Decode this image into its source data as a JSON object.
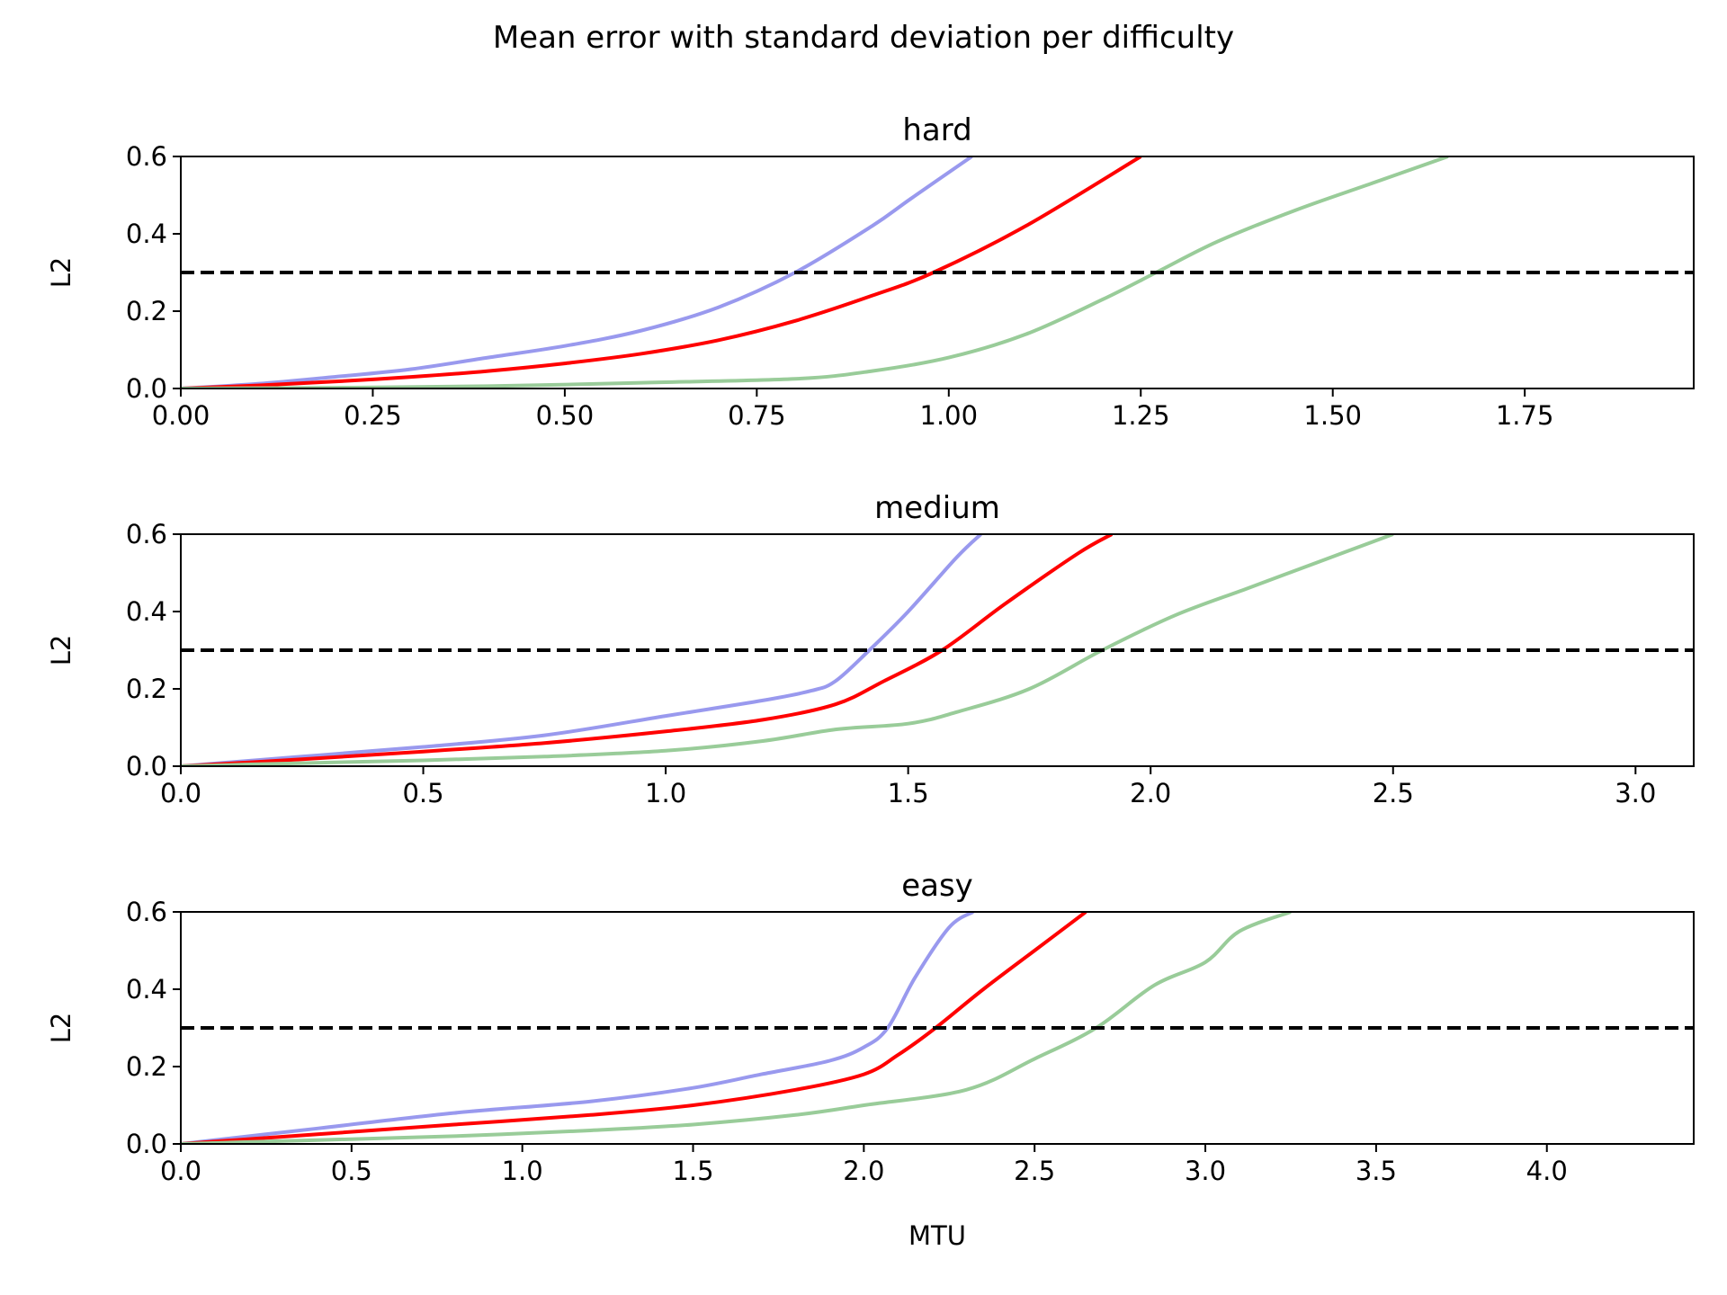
{
  "chart_data": {
    "type": "line",
    "suptitle": "Mean error with standard deviation per difficulty",
    "xlabel": "MTU",
    "threshold": 0.3,
    "series_colors": [
      "#9999ee",
      "#ff0000",
      "#99cc99"
    ],
    "panels": [
      {
        "title": "hard",
        "ylabel": "L2",
        "xlim": [
          0,
          1.97
        ],
        "ylim": [
          0,
          0.6
        ],
        "xticks": [
          "0.00",
          "0.25",
          "0.50",
          "0.75",
          "1.00",
          "1.25",
          "1.50",
          "1.75"
        ],
        "xtick_values": [
          0,
          0.25,
          0.5,
          0.75,
          1.0,
          1.25,
          1.5,
          1.75
        ],
        "yticks": [
          "0.0",
          "0.2",
          "0.4",
          "0.6"
        ],
        "ytick_values": [
          0,
          0.2,
          0.4,
          0.6
        ],
        "series": [
          {
            "color": "#9999ee",
            "x": [
              0,
              0.1,
              0.2,
              0.3,
              0.4,
              0.5,
              0.6,
              0.7,
              0.8,
              0.9,
              0.95,
              1.03
            ],
            "y": [
              0,
              0.012,
              0.03,
              0.05,
              0.08,
              0.11,
              0.15,
              0.21,
              0.3,
              0.42,
              0.49,
              0.6
            ]
          },
          {
            "color": "#ff0000",
            "x": [
              0,
              0.1,
              0.2,
              0.3,
              0.4,
              0.5,
              0.6,
              0.7,
              0.8,
              0.9,
              0.98,
              1.1,
              1.25
            ],
            "y": [
              0,
              0.008,
              0.018,
              0.03,
              0.045,
              0.065,
              0.09,
              0.125,
              0.175,
              0.24,
              0.3,
              0.42,
              0.6
            ]
          },
          {
            "color": "#99cc99",
            "x": [
              0,
              0.2,
              0.4,
              0.6,
              0.8,
              0.9,
              1.0,
              1.1,
              1.2,
              1.27,
              1.35,
              1.45,
              1.55,
              1.65
            ],
            "y": [
              0,
              0.002,
              0.006,
              0.015,
              0.025,
              0.045,
              0.08,
              0.14,
              0.23,
              0.3,
              0.38,
              0.46,
              0.53,
              0.6
            ]
          }
        ]
      },
      {
        "title": "medium",
        "ylabel": "L2",
        "xlim": [
          0,
          3.12
        ],
        "ylim": [
          0,
          0.6
        ],
        "xticks": [
          "0.0",
          "0.5",
          "1.0",
          "1.5",
          "2.0",
          "2.5",
          "3.0"
        ],
        "xtick_values": [
          0,
          0.5,
          1.0,
          1.5,
          2.0,
          2.5,
          3.0
        ],
        "yticks": [
          "0.0",
          "0.2",
          "0.4",
          "0.6"
        ],
        "ytick_values": [
          0,
          0.2,
          0.4,
          0.6
        ],
        "series": [
          {
            "color": "#9999ee",
            "x": [
              0,
              0.25,
              0.5,
              0.75,
              1.0,
              1.2,
              1.3,
              1.35,
              1.42,
              1.5,
              1.6,
              1.65
            ],
            "y": [
              0,
              0.025,
              0.05,
              0.08,
              0.13,
              0.17,
              0.195,
              0.22,
              0.3,
              0.4,
              0.54,
              0.6
            ]
          },
          {
            "color": "#ff0000",
            "x": [
              0,
              0.25,
              0.5,
              0.75,
              1.0,
              1.2,
              1.35,
              1.45,
              1.57,
              1.7,
              1.85,
              1.92
            ],
            "y": [
              0,
              0.018,
              0.038,
              0.06,
              0.09,
              0.12,
              0.16,
              0.22,
              0.3,
              0.42,
              0.55,
              0.6
            ]
          },
          {
            "color": "#99cc99",
            "x": [
              0,
              0.25,
              0.5,
              0.75,
              1.0,
              1.2,
              1.35,
              1.5,
              1.6,
              1.75,
              1.9,
              2.05,
              2.2,
              2.35,
              2.5
            ],
            "y": [
              0,
              0.008,
              0.015,
              0.025,
              0.04,
              0.065,
              0.095,
              0.11,
              0.14,
              0.2,
              0.3,
              0.39,
              0.46,
              0.53,
              0.6
            ]
          }
        ]
      },
      {
        "title": "easy",
        "ylabel": "L2",
        "xlim": [
          0,
          4.43
        ],
        "ylim": [
          0,
          0.6
        ],
        "xticks": [
          "0.0",
          "0.5",
          "1.0",
          "1.5",
          "2.0",
          "2.5",
          "3.0",
          "3.5",
          "4.0"
        ],
        "xtick_values": [
          0,
          0.5,
          1.0,
          1.5,
          2.0,
          2.5,
          3.0,
          3.5,
          4.0
        ],
        "yticks": [
          "0.0",
          "0.2",
          "0.4",
          "0.6"
        ],
        "ytick_values": [
          0,
          0.2,
          0.4,
          0.6
        ],
        "series": [
          {
            "color": "#9999ee",
            "x": [
              0,
              0.4,
              0.8,
              1.2,
              1.5,
              1.7,
              1.9,
              2.0,
              2.07,
              2.15,
              2.25,
              2.32
            ],
            "y": [
              0,
              0.04,
              0.08,
              0.11,
              0.145,
              0.18,
              0.215,
              0.25,
              0.3,
              0.43,
              0.56,
              0.6
            ]
          },
          {
            "color": "#ff0000",
            "x": [
              0,
              0.4,
              0.8,
              1.2,
              1.5,
              1.8,
              2.0,
              2.1,
              2.21,
              2.35,
              2.5,
              2.65
            ],
            "y": [
              0,
              0.025,
              0.05,
              0.075,
              0.1,
              0.14,
              0.18,
              0.23,
              0.3,
              0.4,
              0.5,
              0.6
            ]
          },
          {
            "color": "#99cc99",
            "x": [
              0,
              0.4,
              0.8,
              1.2,
              1.5,
              1.8,
              2.0,
              2.3,
              2.5,
              2.68,
              2.85,
              3.0,
              3.1,
              3.25
            ],
            "y": [
              0,
              0.01,
              0.02,
              0.035,
              0.05,
              0.075,
              0.1,
              0.14,
              0.22,
              0.3,
              0.41,
              0.47,
              0.55,
              0.6
            ]
          }
        ]
      }
    ]
  }
}
